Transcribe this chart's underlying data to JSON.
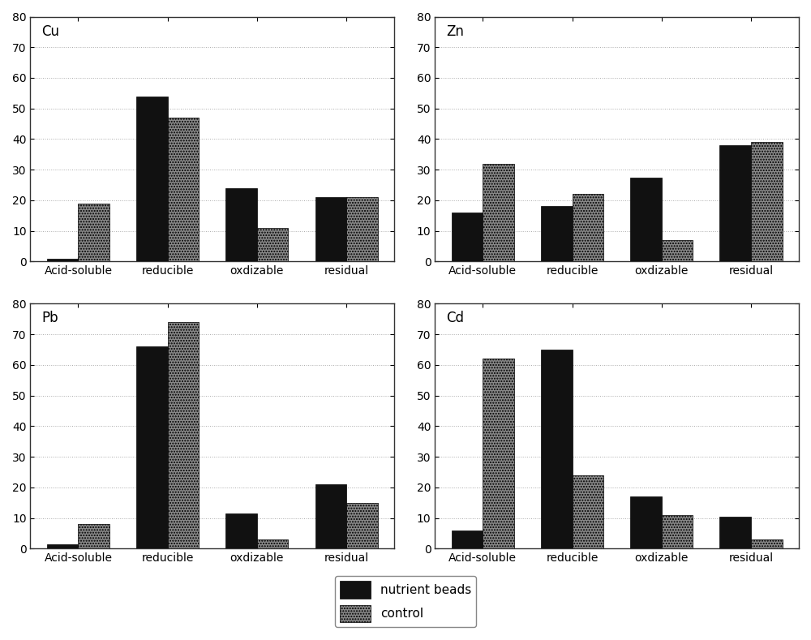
{
  "subplots": [
    {
      "title": "Cu",
      "categories": [
        "Acid-soluble",
        "reducible",
        "oxdizable",
        "residual"
      ],
      "nutrient_beads": [
        1,
        54,
        24,
        21
      ],
      "control": [
        19,
        47,
        11,
        21
      ]
    },
    {
      "title": "Zn",
      "categories": [
        "Acid-soluble",
        "reducible",
        "oxdizable",
        "residual"
      ],
      "nutrient_beads": [
        16,
        18,
        27.5,
        38
      ],
      "control": [
        32,
        22,
        7,
        39
      ]
    },
    {
      "title": "Pb",
      "categories": [
        "Acid-soluble",
        "reducible",
        "oxdizable",
        "residual"
      ],
      "nutrient_beads": [
        1.5,
        66,
        11.5,
        21
      ],
      "control": [
        8,
        74,
        3,
        15
      ]
    },
    {
      "title": "Cd",
      "categories": [
        "Acid-soluble",
        "reducible",
        "oxdizable",
        "residual"
      ],
      "nutrient_beads": [
        6,
        65,
        17,
        10.5
      ],
      "control": [
        62,
        24,
        11,
        3
      ]
    }
  ],
  "ylim": [
    0,
    80
  ],
  "yticks": [
    0,
    10,
    20,
    30,
    40,
    50,
    60,
    70,
    80
  ],
  "bar_width": 0.35,
  "color_nutrient": "#111111",
  "color_control": "#888888",
  "hatch_control": ".....",
  "legend_labels": [
    "nutrient beads",
    "control"
  ],
  "background_color": "#ffffff",
  "grid_color": "#aaaaaa",
  "label_fontsize": 10,
  "title_fontsize": 12,
  "tick_fontsize": 10
}
